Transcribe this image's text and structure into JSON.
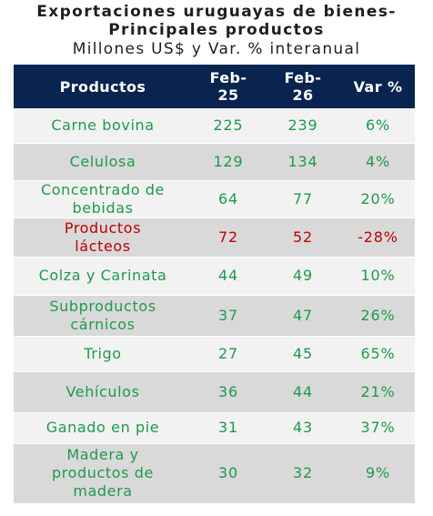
{
  "title": {
    "line1": "Exportaciones uruguayas de bienes-",
    "line2": "Principales productos",
    "subtitle": "Millones US$ y Var. % interanual"
  },
  "colors": {
    "header_bg": "#0a2450",
    "header_text": "#ffffff",
    "positive_text": "#1e9a4c",
    "negative_text": "#c00000",
    "row_light": "#f2f2f2",
    "row_dark": "#d9d9d9"
  },
  "chart_data": {
    "type": "table",
    "columns": [
      {
        "label": "Productos"
      },
      {
        "label_top": "Feb-",
        "label_bottom": "25"
      },
      {
        "label_top": "Feb-",
        "label_bottom": "26"
      },
      {
        "label": "Var %"
      }
    ],
    "rows": [
      {
        "lines": [
          "Carne bovina"
        ],
        "feb25": "225",
        "feb26": "239",
        "var": "6%"
      },
      {
        "lines": [
          "Celulosa"
        ],
        "feb25": "129",
        "feb26": "134",
        "var": "4%"
      },
      {
        "lines": [
          "Concentrado de",
          "bebidas"
        ],
        "feb25": "64",
        "feb26": "77",
        "var": "20%"
      },
      {
        "lines": [
          "Productos",
          "lácteos"
        ],
        "feb25": "72",
        "feb26": "52",
        "var": "-28%"
      },
      {
        "lines": [
          "Colza y Carinata"
        ],
        "feb25": "44",
        "feb26": "49",
        "var": "10%"
      },
      {
        "lines": [
          "Subproductos",
          "cárnicos"
        ],
        "feb25": "37",
        "feb26": "47",
        "var": "26%"
      },
      {
        "lines": [
          "Trigo"
        ],
        "feb25": "27",
        "feb26": "45",
        "var": "65%"
      },
      {
        "lines": [
          "Vehículos"
        ],
        "feb25": "36",
        "feb26": "44",
        "var": "21%"
      },
      {
        "lines": [
          "Ganado en pie"
        ],
        "feb25": "31",
        "feb26": "43",
        "var": "37%"
      },
      {
        "lines": [
          "Madera y",
          "productos de",
          "madera"
        ],
        "feb25": "30",
        "feb26": "32",
        "var": "9%"
      }
    ]
  }
}
